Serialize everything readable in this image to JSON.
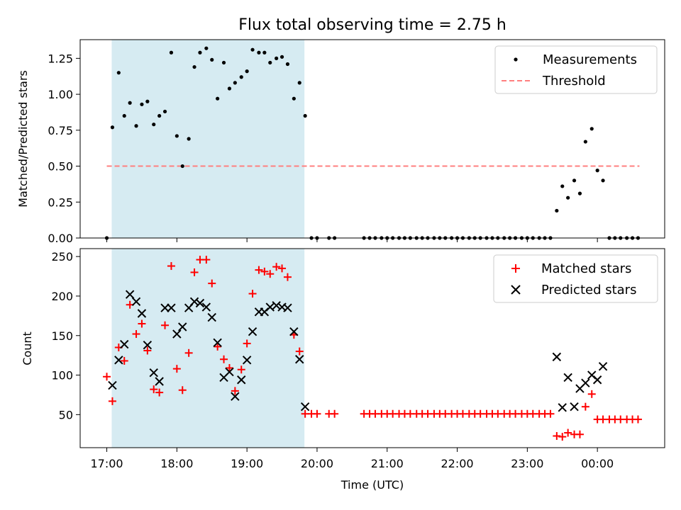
{
  "chart_data": [
    {
      "type": "scatter",
      "title": "Flux total observing time = 2.75 h",
      "xlabel": "",
      "ylabel": "Matched/Predicted stars",
      "xlim": [
        16.62,
        24.96
      ],
      "ylim": [
        0,
        1.38
      ],
      "ytick_labels": [
        "0.00",
        "0.25",
        "0.50",
        "0.75",
        "1.00",
        "1.25"
      ],
      "ytick_values": [
        0,
        0.25,
        0.5,
        0.75,
        1.0,
        1.25
      ],
      "threshold": {
        "value": 0.5,
        "x_from": 17.0,
        "x_to": 24.6,
        "color": "#ff7f7f"
      },
      "shaded_span": {
        "x_from": 17.07,
        "x_to": 19.82,
        "color": "#add8e6"
      },
      "legend": {
        "position": "top-right",
        "entries": [
          {
            "label": "Measurements",
            "marker": "dot"
          },
          {
            "label": "Threshold",
            "marker": "dashed-line"
          }
        ]
      },
      "series": [
        {
          "name": "Measurements",
          "color": "#000000",
          "x": [
            17.0,
            17.08,
            17.17,
            17.25,
            17.33,
            17.42,
            17.5,
            17.58,
            17.67,
            17.75,
            17.83,
            17.92,
            18.0,
            18.08,
            18.17,
            18.25,
            18.33,
            18.42,
            18.5,
            18.58,
            18.67,
            18.75,
            18.83,
            18.92,
            19.0,
            19.08,
            19.17,
            19.25,
            19.33,
            19.42,
            19.5,
            19.58,
            19.67,
            19.75,
            19.83,
            19.92,
            20.0,
            20.17,
            20.25,
            20.67,
            20.75,
            20.83,
            20.92,
            21.0,
            21.08,
            21.17,
            21.25,
            21.33,
            21.42,
            21.5,
            21.58,
            21.67,
            21.75,
            21.83,
            21.92,
            22.0,
            22.08,
            22.17,
            22.25,
            22.33,
            22.42,
            22.5,
            22.58,
            22.67,
            22.75,
            22.83,
            22.92,
            23.0,
            23.08,
            23.17,
            23.25,
            23.33,
            23.42,
            23.5,
            23.58,
            23.67,
            23.75,
            23.83,
            23.92,
            24.0,
            24.08,
            24.17,
            24.25,
            24.33,
            24.42,
            24.5,
            24.58
          ],
          "y": [
            0.0,
            0.77,
            1.15,
            0.85,
            0.94,
            0.78,
            0.93,
            0.95,
            0.79,
            0.85,
            0.88,
            1.29,
            0.71,
            0.5,
            0.69,
            1.19,
            1.29,
            1.32,
            1.24,
            0.97,
            1.22,
            1.04,
            1.08,
            1.12,
            1.16,
            1.31,
            1.29,
            1.29,
            1.22,
            1.25,
            1.26,
            1.21,
            0.97,
            1.08,
            0.85,
            0.0,
            0.0,
            0.0,
            0.0,
            0.0,
            0.0,
            0.0,
            0.0,
            0.0,
            0.0,
            0.0,
            0.0,
            0.0,
            0.0,
            0.0,
            0.0,
            0.0,
            0.0,
            0.0,
            0.0,
            0.0,
            0.0,
            0.0,
            0.0,
            0.0,
            0.0,
            0.0,
            0.0,
            0.0,
            0.0,
            0.0,
            0.0,
            0.0,
            0.0,
            0.0,
            0.0,
            0.0,
            0.19,
            0.36,
            0.28,
            0.4,
            0.31,
            0.67,
            0.76,
            0.47,
            0.4,
            0.0,
            0.0,
            0.0,
            0.0,
            0.0,
            0.0
          ]
        }
      ]
    },
    {
      "type": "scatter",
      "title": "",
      "xlabel": "Time (UTC)",
      "ylabel": "Count",
      "xlim": [
        16.62,
        24.96
      ],
      "ylim": [
        8.2,
        260
      ],
      "ytick_labels": [
        "50",
        "100",
        "150",
        "200",
        "250"
      ],
      "ytick_values": [
        50,
        100,
        150,
        200,
        250
      ],
      "xtick_labels": [
        "17:00",
        "18:00",
        "19:00",
        "20:00",
        "21:00",
        "22:00",
        "23:00",
        "00:00"
      ],
      "xtick_values": [
        17,
        18,
        19,
        20,
        21,
        22,
        23,
        24
      ],
      "shaded_span": {
        "x_from": 17.07,
        "x_to": 19.82,
        "color": "#add8e6"
      },
      "legend": {
        "position": "top-right",
        "entries": [
          {
            "label": "Matched stars",
            "marker": "plus"
          },
          {
            "label": "Predicted stars",
            "marker": "x"
          }
        ]
      },
      "series": [
        {
          "name": "Matched stars",
          "color": "#ff0000",
          "marker": "plus",
          "x": [
            17.0,
            17.08,
            17.17,
            17.25,
            17.33,
            17.42,
            17.5,
            17.58,
            17.67,
            17.75,
            17.83,
            17.92,
            18.0,
            18.08,
            18.17,
            18.25,
            18.33,
            18.42,
            18.5,
            18.58,
            18.67,
            18.75,
            18.83,
            18.92,
            19.0,
            19.08,
            19.17,
            19.25,
            19.33,
            19.42,
            19.5,
            19.58,
            19.67,
            19.75,
            19.83,
            19.92,
            20.0,
            20.17,
            20.25,
            20.67,
            20.75,
            20.83,
            20.92,
            21.0,
            21.08,
            21.17,
            21.25,
            21.33,
            21.42,
            21.5,
            21.58,
            21.67,
            21.75,
            21.83,
            21.92,
            22.0,
            22.08,
            22.17,
            22.25,
            22.33,
            22.42,
            22.5,
            22.58,
            22.67,
            22.75,
            22.83,
            22.92,
            23.0,
            23.08,
            23.17,
            23.25,
            23.33,
            23.42,
            23.5,
            23.58,
            23.67,
            23.75,
            23.83,
            23.92,
            24.0,
            24.08,
            24.17,
            24.25,
            24.33,
            24.42,
            24.5,
            24.58
          ],
          "y": [
            98,
            67,
            135,
            118,
            189,
            152,
            165,
            131,
            82,
            78,
            163,
            238,
            108,
            81,
            128,
            230,
            246,
            246,
            216,
            136,
            120,
            109,
            80,
            107,
            140,
            203,
            233,
            231,
            228,
            237,
            235,
            224,
            151,
            130,
            51,
            51,
            51,
            51,
            51,
            51,
            51,
            51,
            51,
            51,
            51,
            51,
            51,
            51,
            51,
            51,
            51,
            51,
            51,
            51,
            51,
            51,
            51,
            51,
            51,
            51,
            51,
            51,
            51,
            51,
            51,
            51,
            51,
            51,
            51,
            51,
            51,
            51,
            23,
            22,
            27,
            25,
            25,
            60,
            76,
            44,
            44,
            44,
            44,
            44,
            44,
            44,
            44
          ]
        },
        {
          "name": "Predicted stars",
          "color": "#000000",
          "marker": "x",
          "x": [
            17.08,
            17.17,
            17.25,
            17.33,
            17.42,
            17.5,
            17.58,
            17.67,
            17.75,
            17.83,
            17.92,
            18.0,
            18.08,
            18.17,
            18.25,
            18.33,
            18.42,
            18.5,
            18.58,
            18.67,
            18.75,
            18.83,
            18.92,
            19.0,
            19.08,
            19.17,
            19.25,
            19.33,
            19.42,
            19.5,
            19.58,
            19.67,
            19.75,
            19.83,
            23.42,
            23.5,
            23.58,
            23.67,
            23.75,
            23.83,
            23.92,
            24.0,
            24.08
          ],
          "y": [
            87,
            119,
            139,
            202,
            193,
            178,
            138,
            103,
            92,
            185,
            185,
            152,
            161,
            185,
            193,
            191,
            186,
            173,
            141,
            97,
            104,
            73,
            94,
            119,
            155,
            180,
            180,
            186,
            188,
            186,
            185,
            155,
            120,
            60,
            123,
            59,
            97,
            60,
            83,
            90,
            100,
            94,
            111
          ]
        }
      ]
    }
  ]
}
